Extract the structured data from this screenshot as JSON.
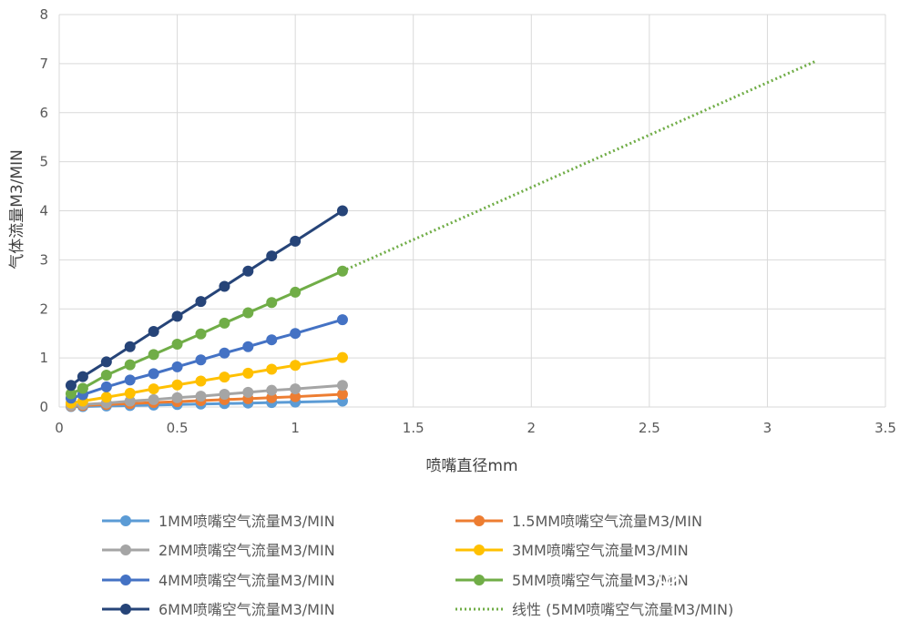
{
  "chart_data": {
    "type": "line",
    "xlabel": "喷嘴直径mm",
    "ylabel": "气体流量M3/MIN",
    "xlim": [
      0,
      3.5
    ],
    "ylim": [
      0,
      8
    ],
    "x_ticks": [
      "0",
      "0.5",
      "1",
      "1.5",
      "2",
      "2.5",
      "3",
      "3.5"
    ],
    "y_ticks": [
      "0",
      "1",
      "2",
      "3",
      "4",
      "5",
      "6",
      "7",
      "8"
    ],
    "grid": true,
    "legend_position": "bottom",
    "x": [
      0.05,
      0.1,
      0.2,
      0.3,
      0.4,
      0.5,
      0.6,
      0.7,
      0.8,
      0.9,
      1.0,
      1.2
    ],
    "series": [
      {
        "name": "1MM喷嘴空气流量M3/MIN",
        "color": "#5b9bd5",
        "values": [
          0.01,
          0.01,
          0.02,
          0.03,
          0.04,
          0.05,
          0.06,
          0.07,
          0.08,
          0.09,
          0.1,
          0.12
        ]
      },
      {
        "name": "1.5MM喷嘴空气流量M3/MIN",
        "color": "#ed7d31",
        "values": [
          0.02,
          0.03,
          0.05,
          0.07,
          0.09,
          0.11,
          0.13,
          0.15,
          0.17,
          0.19,
          0.21,
          0.26
        ]
      },
      {
        "name": "2MM喷嘴空气流量M3/MIN",
        "color": "#a5a5a5",
        "values": [
          0.03,
          0.05,
          0.08,
          0.12,
          0.15,
          0.19,
          0.22,
          0.26,
          0.3,
          0.34,
          0.37,
          0.44
        ]
      },
      {
        "name": "3MM喷嘴空气流量M3/MIN",
        "color": "#ffc000",
        "values": [
          0.08,
          0.12,
          0.2,
          0.28,
          0.37,
          0.45,
          0.53,
          0.61,
          0.69,
          0.77,
          0.85,
          1.01
        ]
      },
      {
        "name": "4MM喷嘴空气流量M3/MIN",
        "color": "#4472c4",
        "values": [
          0.18,
          0.25,
          0.41,
          0.55,
          0.68,
          0.82,
          0.96,
          1.1,
          1.23,
          1.37,
          1.5,
          1.78
        ]
      },
      {
        "name": "5MM喷嘴空气流量M3/MIN",
        "color": "#70ad47",
        "values": [
          0.27,
          0.38,
          0.65,
          0.86,
          1.07,
          1.28,
          1.49,
          1.71,
          1.92,
          2.13,
          2.34,
          2.77
        ]
      },
      {
        "name": "6MM喷嘴空气流量M3/MIN",
        "color": "#264478",
        "values": [
          0.44,
          0.62,
          0.92,
          1.23,
          1.54,
          1.85,
          2.15,
          2.46,
          2.77,
          3.08,
          3.38,
          4.0
        ]
      }
    ],
    "trendline": {
      "name": "线性 (5MM喷嘴空气流量M3/MIN)",
      "color": "#70ad47",
      "style": "dotted",
      "x": [
        1.2,
        3.2
      ],
      "y": [
        2.77,
        7.04
      ]
    }
  },
  "watermark": {
    "text": "微信号: ACT-LFWC",
    "icon": "wechat-icon"
  }
}
